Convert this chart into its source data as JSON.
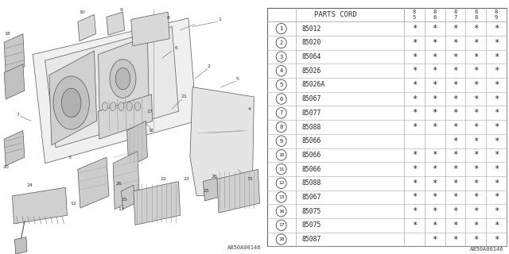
{
  "bg_color": "#ffffff",
  "title": "PARTS CORD",
  "col_headers": [
    "85",
    "86",
    "87",
    "88",
    "89"
  ],
  "rows": [
    {
      "num": "1",
      "code": "85012",
      "marks": [
        true,
        true,
        true,
        true,
        true
      ]
    },
    {
      "num": "2",
      "code": "85020",
      "marks": [
        true,
        true,
        true,
        true,
        true
      ]
    },
    {
      "num": "3",
      "code": "85064",
      "marks": [
        true,
        true,
        true,
        true,
        true
      ]
    },
    {
      "num": "4",
      "code": "85026",
      "marks": [
        true,
        true,
        true,
        true,
        true
      ]
    },
    {
      "num": "5",
      "code": "85026A",
      "marks": [
        true,
        true,
        true,
        true,
        true
      ]
    },
    {
      "num": "6",
      "code": "85067",
      "marks": [
        true,
        true,
        true,
        true,
        true
      ]
    },
    {
      "num": "7",
      "code": "85077",
      "marks": [
        true,
        true,
        true,
        true,
        true
      ]
    },
    {
      "num": "8",
      "code": "85088",
      "marks": [
        true,
        true,
        true,
        true,
        true
      ]
    },
    {
      "num": "9",
      "code": "85066",
      "marks": [
        false,
        false,
        true,
        true,
        true
      ]
    },
    {
      "num": "10",
      "code": "85066",
      "marks": [
        true,
        true,
        true,
        true,
        true
      ]
    },
    {
      "num": "11",
      "code": "85066",
      "marks": [
        true,
        true,
        true,
        true,
        true
      ]
    },
    {
      "num": "12",
      "code": "85088",
      "marks": [
        true,
        true,
        true,
        true,
        true
      ]
    },
    {
      "num": "13",
      "code": "85067",
      "marks": [
        true,
        true,
        true,
        true,
        true
      ]
    },
    {
      "num": "16",
      "code": "85075",
      "marks": [
        true,
        true,
        true,
        true,
        true
      ]
    },
    {
      "num": "17",
      "code": "85075",
      "marks": [
        true,
        true,
        true,
        true,
        true
      ]
    },
    {
      "num": "18",
      "code": "85087",
      "marks": [
        false,
        true,
        true,
        true,
        true
      ]
    }
  ],
  "table_line_color": "#aaaaaa",
  "watermark": "A850A00146",
  "lc": "#555555",
  "lw": 0.5
}
